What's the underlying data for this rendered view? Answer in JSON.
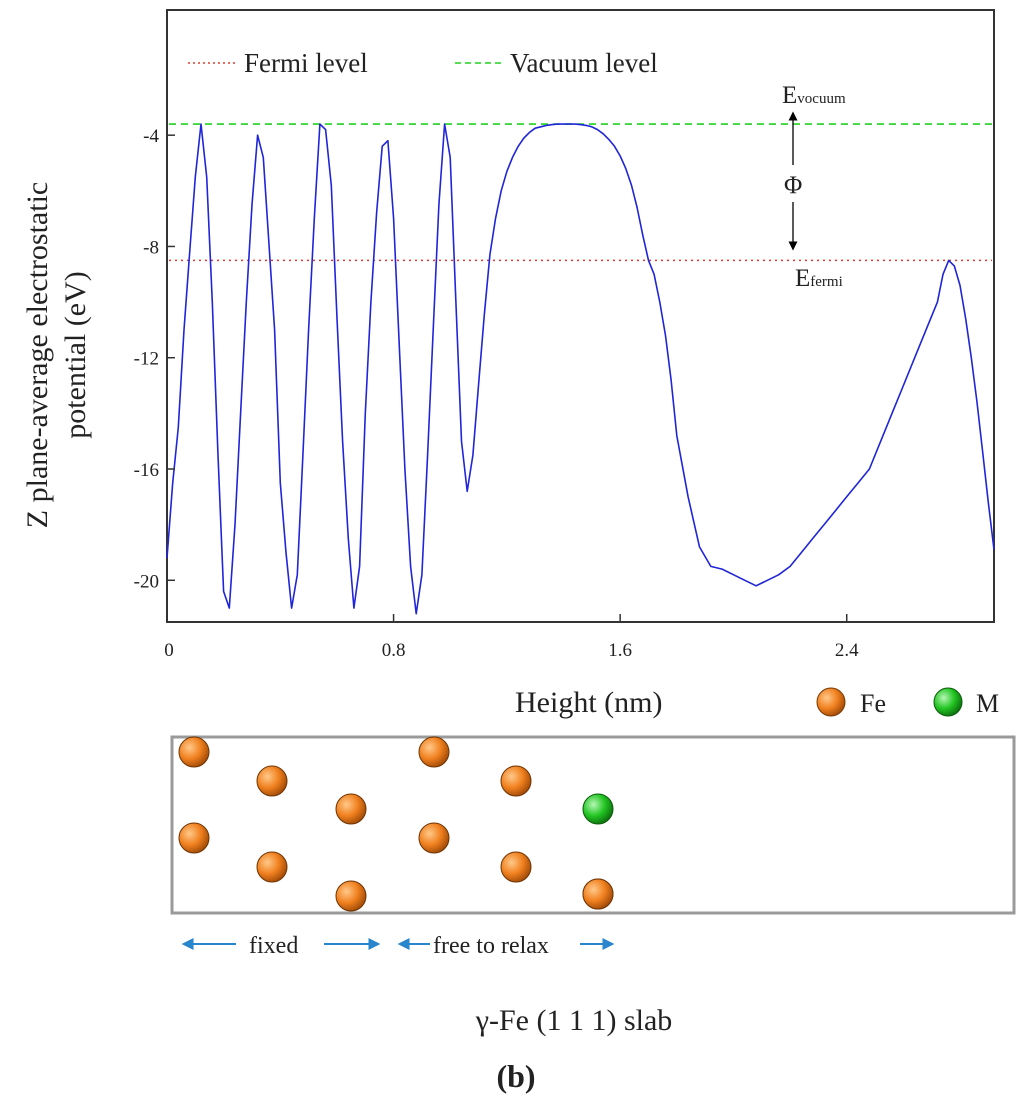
{
  "chart_data": {
    "type": "line",
    "title": "",
    "xlabel": "Height (nm)",
    "ylabel": "Z plane-average electrostatic potential (eV)",
    "ylabel_lines": [
      "Z plane-average electrostatic",
      "potential (eV)"
    ],
    "xlim": [
      0,
      2.92
    ],
    "ylim": [
      -21.5,
      0.5
    ],
    "xticks": [
      0,
      0.8,
      1.6,
      2.4
    ],
    "xtick_labels": [
      "0",
      "0.8",
      "1.6",
      "2.4"
    ],
    "yticks": [
      -4,
      -8,
      -12,
      -16,
      -20
    ],
    "ytick_labels": [
      "-4",
      "-8",
      "-12",
      "-16",
      "-20"
    ],
    "grid": false,
    "legend": {
      "placement": "top-left",
      "entries": [
        {
          "label": "Fermi level",
          "color": "#e23a2f",
          "style": "dotted"
        },
        {
          "label": "Vacuum level",
          "color": "#1ed41e",
          "style": "dashed"
        }
      ]
    },
    "series": [
      {
        "color": "#1f25d8",
        "x": [
          0.0,
          0.02,
          0.04,
          0.06,
          0.08,
          0.1,
          0.12,
          0.14,
          0.16,
          0.18,
          0.2,
          0.22,
          0.24,
          0.26,
          0.28,
          0.3,
          0.32,
          0.34,
          0.38,
          0.4,
          0.42,
          0.44,
          0.46,
          0.48,
          0.5,
          0.52,
          0.54,
          0.56,
          0.58,
          0.6,
          0.62,
          0.64,
          0.66,
          0.68,
          0.7,
          0.72,
          0.74,
          0.76,
          0.78,
          0.8,
          0.82,
          0.84,
          0.86,
          0.88,
          0.9,
          0.92,
          0.94,
          0.96,
          0.98,
          1.0,
          1.02,
          1.04,
          1.06,
          1.08,
          1.1,
          1.12,
          1.14,
          1.16,
          1.18,
          1.2,
          1.22,
          1.24,
          1.26,
          1.28,
          1.3,
          1.32,
          1.34,
          1.36,
          1.38,
          1.4,
          1.42,
          1.44,
          1.46,
          1.48,
          1.5,
          1.52,
          1.54,
          1.56,
          1.58,
          1.6,
          1.62,
          1.64,
          1.66,
          1.68,
          1.7,
          1.72,
          1.74,
          1.76,
          1.78,
          1.8,
          1.84,
          1.88,
          1.92,
          1.96,
          2.0,
          2.04,
          2.08,
          2.12,
          2.16,
          2.2,
          2.24,
          2.28,
          2.32,
          2.36,
          2.4,
          2.44,
          2.48,
          2.52,
          2.56,
          2.6,
          2.64,
          2.68,
          2.72,
          2.74,
          2.76,
          2.78,
          2.8,
          2.82,
          2.84,
          2.86,
          2.88,
          2.9,
          2.92
        ],
        "y": [
          -19.2,
          -16.5,
          -14.5,
          -11.0,
          -8.2,
          -5.5,
          -3.6,
          -5.5,
          -10.0,
          -15.5,
          -20.4,
          -21.0,
          -18.0,
          -14.0,
          -10.0,
          -6.5,
          -4.0,
          -4.8,
          -11.0,
          -16.5,
          -19.0,
          -21.0,
          -19.8,
          -15.5,
          -11.0,
          -7.0,
          -3.6,
          -3.8,
          -5.8,
          -10.5,
          -15.0,
          -18.5,
          -21.0,
          -19.5,
          -14.0,
          -10.0,
          -6.8,
          -4.4,
          -4.2,
          -7.0,
          -11.5,
          -16.0,
          -19.5,
          -21.2,
          -19.8,
          -15.5,
          -11.0,
          -6.5,
          -3.6,
          -4.8,
          -10.0,
          -15.0,
          -16.8,
          -15.5,
          -13.0,
          -10.5,
          -8.3,
          -7.0,
          -6.0,
          -5.3,
          -4.8,
          -4.4,
          -4.1,
          -3.9,
          -3.75,
          -3.7,
          -3.65,
          -3.62,
          -3.6,
          -3.6,
          -3.6,
          -3.6,
          -3.62,
          -3.65,
          -3.7,
          -3.8,
          -3.95,
          -4.15,
          -4.4,
          -4.75,
          -5.2,
          -5.8,
          -6.6,
          -7.6,
          -8.5,
          -9.0,
          -10.0,
          -11.2,
          -12.8,
          -14.8,
          -17.0,
          -18.8,
          -19.5,
          -19.6,
          -19.8,
          -20.0,
          -20.2,
          -20.0,
          -19.8,
          -19.5,
          -19.0,
          -18.5,
          -18.0,
          -17.5,
          -17.0,
          -16.5,
          -16.0,
          -15.0,
          -14.0,
          -13.0,
          -12.0,
          -11.0,
          -10.0,
          -9.0,
          -8.5,
          -8.7,
          -9.4,
          -10.6,
          -12.0,
          -13.6,
          -15.4,
          -17.2,
          -18.9
        ]
      }
    ],
    "fermi_level": -8.5,
    "vacuum_level": -3.6,
    "annotations": {
      "e_vac_main": "E",
      "e_vac_sub": "vocuum",
      "phi": "Φ",
      "e_fermi_main": "E",
      "e_fermi_sub": "fermi"
    }
  },
  "slab": {
    "legend": [
      {
        "label": "Fe",
        "color": "#f0801e"
      },
      {
        "label": "M",
        "color": "#22c522"
      }
    ],
    "atoms": [
      {
        "element": "Fe",
        "color": "#f0801e"
      },
      {
        "element": "Fe",
        "color": "#f0801e"
      },
      {
        "element": "Fe",
        "color": "#f0801e"
      },
      {
        "element": "Fe",
        "color": "#f0801e"
      },
      {
        "element": "Fe",
        "color": "#f0801e"
      },
      {
        "element": "Fe",
        "color": "#f0801e"
      },
      {
        "element": "Fe",
        "color": "#f0801e"
      },
      {
        "element": "Fe",
        "color": "#f0801e"
      },
      {
        "element": "Fe",
        "color": "#f0801e"
      },
      {
        "element": "Fe",
        "color": "#f0801e"
      },
      {
        "element": "Fe",
        "color": "#f0801e"
      },
      {
        "element": "M",
        "color": "#22c522"
      },
      {
        "element": "Fe",
        "color": "#f0801e"
      }
    ],
    "fixed_label": "fixed",
    "free_label": "free to relax",
    "caption": "γ-Fe (1 1 1) slab",
    "panel_label": "(b)",
    "arrow_color": "#2a86cc"
  }
}
